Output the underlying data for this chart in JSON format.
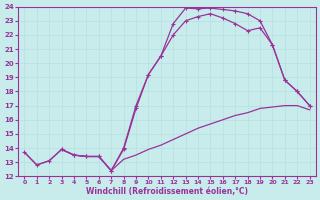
{
  "xlabel": "Windchill (Refroidissement éolien,°C)",
  "xlim": [
    -0.5,
    23.5
  ],
  "ylim": [
    12,
    24
  ],
  "xticks": [
    0,
    1,
    2,
    3,
    4,
    5,
    6,
    7,
    8,
    9,
    10,
    11,
    12,
    13,
    14,
    15,
    16,
    17,
    18,
    19,
    20,
    21,
    22,
    23
  ],
  "yticks": [
    12,
    13,
    14,
    15,
    16,
    17,
    18,
    19,
    20,
    21,
    22,
    23,
    24
  ],
  "bg_color": "#c8ecec",
  "line_color": "#993399",
  "grid_color": "#b8e0e0",
  "line1_x": [
    0,
    1,
    2,
    3,
    4,
    5,
    6,
    7,
    8,
    9,
    10,
    11,
    12,
    13,
    14,
    15,
    16,
    17,
    18,
    19,
    20,
    21,
    22,
    23
  ],
  "line1_y": [
    13.7,
    12.8,
    13.1,
    13.9,
    13.5,
    13.4,
    13.4,
    12.4,
    13.9,
    16.8,
    19.2,
    20.5,
    22.8,
    23.9,
    23.85,
    23.9,
    23.8,
    23.7,
    23.5,
    23.0,
    21.3,
    18.8,
    18.0,
    17.0
  ],
  "line2_x": [
    3,
    4,
    5,
    6,
    7,
    8,
    9,
    10,
    11,
    12,
    13,
    14,
    15,
    16,
    17,
    18,
    19,
    20,
    21,
    22,
    23
  ],
  "line2_y": [
    13.9,
    13.5,
    13.4,
    13.4,
    12.4,
    14.0,
    17.0,
    19.2,
    20.5,
    22.0,
    23.0,
    23.3,
    23.5,
    23.2,
    22.8,
    22.3,
    22.5,
    21.3,
    18.8,
    18.0,
    17.0
  ],
  "line3_x": [
    0,
    1,
    2,
    3,
    4,
    5,
    6,
    7,
    8,
    9,
    10,
    11,
    12,
    13,
    14,
    15,
    16,
    17,
    18,
    19,
    20,
    21,
    22,
    23
  ],
  "line3_y": [
    13.7,
    12.8,
    13.1,
    13.9,
    13.5,
    13.4,
    13.4,
    12.4,
    13.2,
    13.5,
    13.9,
    14.2,
    14.6,
    15.0,
    15.4,
    15.7,
    16.0,
    16.3,
    16.5,
    16.8,
    16.9,
    17.0,
    17.0,
    16.7
  ]
}
